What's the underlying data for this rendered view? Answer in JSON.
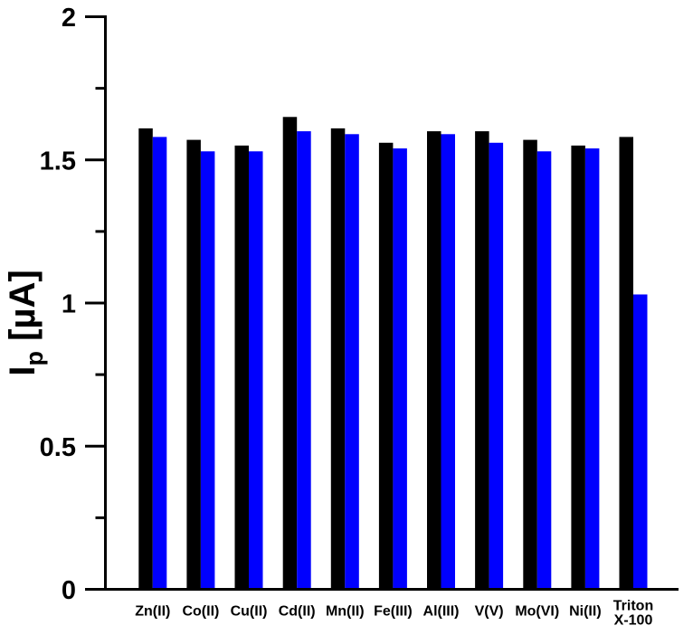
{
  "figure": {
    "background": "#ffffff",
    "axis_color": "#000000"
  },
  "chart_data": {
    "type": "bar",
    "title": "",
    "xlabel": "",
    "ylabel": "Ip [µA]",
    "ylabel_parts": {
      "base": "I",
      "subscript": "p",
      "unit": " [µA]"
    },
    "categories": [
      "Zn(II)",
      "Co(II)",
      "Cu(II)",
      "Cd(II)",
      "Mn(II)",
      "Fe(III)",
      "Al(III)",
      "V(V)",
      "Mo(VI)",
      "Ni(II)",
      "Triton\nX-100"
    ],
    "series": [
      {
        "name": "black",
        "color": "#000000",
        "values": [
          1.61,
          1.57,
          1.55,
          1.65,
          1.61,
          1.56,
          1.6,
          1.6,
          1.57,
          1.55,
          1.58
        ]
      },
      {
        "name": "blue",
        "color": "#0000fe",
        "values": [
          1.58,
          1.53,
          1.53,
          1.6,
          1.59,
          1.54,
          1.59,
          1.56,
          1.53,
          1.54,
          1.03
        ]
      }
    ],
    "ylim": [
      0,
      2
    ],
    "yticks_major": [
      0,
      0.5,
      1,
      1.5,
      2
    ],
    "ytick_labels": [
      "0",
      "0.5",
      "1",
      "1.5",
      "2"
    ],
    "yticks_minor": [
      0.25,
      0.75,
      1.25,
      1.75
    ],
    "grid": false,
    "legend": "none"
  }
}
